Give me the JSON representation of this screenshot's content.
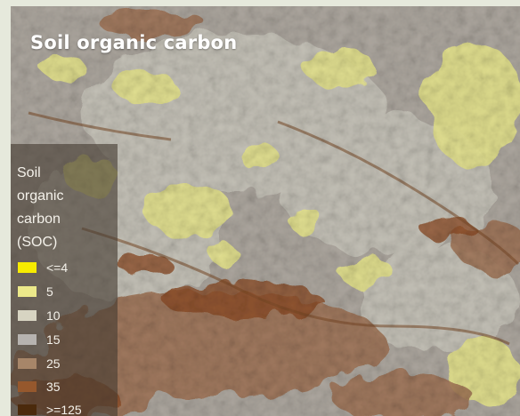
{
  "title": "Soil organic carbon",
  "legend": {
    "title_lines": [
      "Soil",
      "organic",
      "carbon",
      "(SOC)"
    ],
    "items": [
      {
        "label": "<=4",
        "color": "#f7ec00"
      },
      {
        "label": "5",
        "color": "#ece98a"
      },
      {
        "label": "10",
        "color": "#d7d4c2"
      },
      {
        "label": "15",
        "color": "#b6b3b0"
      },
      {
        "label": "25",
        "color": "#a78669"
      },
      {
        "label": "35",
        "color": "#96582d"
      },
      {
        "label": ">=125",
        "color": "#4b2a0c"
      }
    ]
  }
}
